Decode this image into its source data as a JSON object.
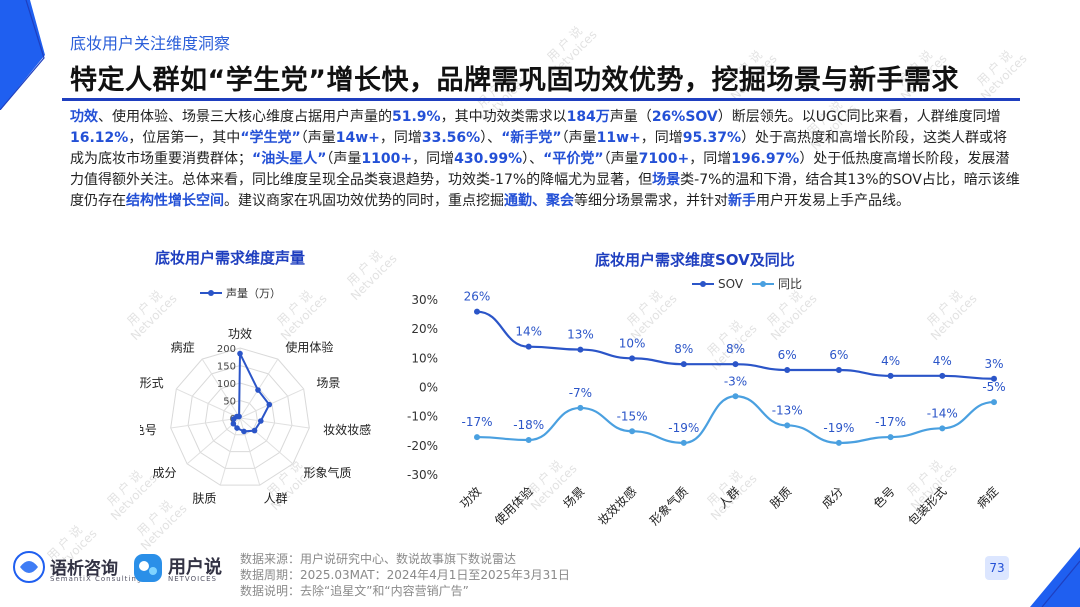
{
  "header": {
    "section_label": "底妆用户关注维度洞察",
    "headline": "特定人群如“学生党”增长快，品牌需巩固功效优势，挖掘场景与新手需求"
  },
  "summary_segments": [
    {
      "t": "功效",
      "hl": true
    },
    {
      "t": "、使用体验、场景三大核心维度占据用户声量的",
      "hl": false
    },
    {
      "t": "51.9%",
      "hl": true
    },
    {
      "t": "，其中功效类需求以",
      "hl": false
    },
    {
      "t": "184万",
      "hl": true
    },
    {
      "t": "声量（",
      "hl": false
    },
    {
      "t": "26%SOV",
      "hl": true
    },
    {
      "t": "）断层领先。以UGC同比来看，人群维度同增",
      "hl": false
    },
    {
      "t": "16.12%",
      "hl": true
    },
    {
      "t": "，位居第一，其中",
      "hl": false
    },
    {
      "t": "“学生党”",
      "hl": true
    },
    {
      "t": "（声量",
      "hl": false
    },
    {
      "t": "14w+",
      "hl": true
    },
    {
      "t": "，同增",
      "hl": false
    },
    {
      "t": "33.56%",
      "hl": true
    },
    {
      "t": "）、",
      "hl": false
    },
    {
      "t": "“新手党”",
      "hl": true
    },
    {
      "t": "（声量",
      "hl": false
    },
    {
      "t": "11w+",
      "hl": true
    },
    {
      "t": "，同增",
      "hl": false
    },
    {
      "t": "95.37%",
      "hl": true
    },
    {
      "t": "）处于高热度和高增长阶段，这类人群或将成为底妆市场重要消费群体；",
      "hl": false
    },
    {
      "t": "“油头星人”",
      "hl": true
    },
    {
      "t": "（声量",
      "hl": false
    },
    {
      "t": "1100+",
      "hl": true
    },
    {
      "t": "，同增",
      "hl": false
    },
    {
      "t": "430.99%",
      "hl": true
    },
    {
      "t": "）、",
      "hl": false
    },
    {
      "t": "“平价党”",
      "hl": true
    },
    {
      "t": "（声量",
      "hl": false
    },
    {
      "t": "7100+",
      "hl": true
    },
    {
      "t": "，同增",
      "hl": false
    },
    {
      "t": "196.97%",
      "hl": true
    },
    {
      "t": "）处于低热度高增长阶段，发展潜力值得额外关注。总体来看，同比维度呈现全品类衰退趋势，功效类-17%的降幅尤为显著，但",
      "hl": false
    },
    {
      "t": "场景",
      "hl": true
    },
    {
      "t": "类-7%的温和下滑，结合其13%的SOV占比，暗示该维度仍存在",
      "hl": false
    },
    {
      "t": "结构性增长空间",
      "hl": true
    },
    {
      "t": "。建议商家在巩固功效优势的同时，重点挖掘",
      "hl": false
    },
    {
      "t": "通勤、聚会",
      "hl": true
    },
    {
      "t": "等细分场景需求，并针对",
      "hl": false
    },
    {
      "t": "新手",
      "hl": true
    },
    {
      "t": "用户开发易上手产品线。",
      "hl": false
    }
  ],
  "colors": {
    "brand_blue": "#1f3fbf",
    "highlight_blue": "#2350d6",
    "sov_line": "#2b55c8",
    "yoy_line": "#4aa0e0"
  },
  "chart_data": [
    {
      "type": "radar",
      "title": "底妆用户需求维度声量",
      "legend": {
        "label": "声量（万）",
        "placement": "top"
      },
      "categories": [
        "功效",
        "使用体验",
        "场景",
        "妆效妆感",
        "形象气质",
        "人群",
        "肤质",
        "成分",
        "色号",
        "包装形式",
        "病症"
      ],
      "values": [
        184,
        95,
        92,
        60,
        55,
        40,
        30,
        25,
        18,
        10,
        5
      ],
      "r_ticks": [
        "0",
        "50",
        "100",
        "150",
        "200"
      ],
      "r_max": 200,
      "grid": true
    },
    {
      "type": "line",
      "title": "底妆用户需求维度SOV及同比",
      "legend": {
        "placement": "top"
      },
      "categories": [
        "功效",
        "使用体验",
        "场景",
        "妆效妆感",
        "形象气质",
        "人群",
        "肤质",
        "成分",
        "色号",
        "包装形式",
        "病症"
      ],
      "series": [
        {
          "name": "SOV",
          "values": [
            26,
            14,
            13,
            10,
            8,
            8,
            6,
            6,
            4,
            4,
            3
          ],
          "labels": [
            "26%",
            "14%",
            "13%",
            "10%",
            "8%",
            "8%",
            "6%",
            "6%",
            "4%",
            "4%",
            "3%"
          ]
        },
        {
          "name": "同比",
          "values": [
            -17,
            -18,
            -7,
            -15,
            -19,
            -3,
            -13,
            -19,
            -17,
            -14,
            -5
          ],
          "labels": [
            "-17%",
            "-18%",
            "-7%",
            "-15%",
            "-19%",
            "-3%",
            "-13%",
            "-19%",
            "-17%",
            "-14%",
            "-5%"
          ]
        }
      ],
      "y_ticks": [
        "30%",
        "20%",
        "10%",
        "0%",
        "-10%",
        "-20%",
        "-30%"
      ],
      "ylim": [
        -30,
        30
      ]
    }
  ],
  "footer": {
    "lines": [
      "数据来源：用户说研究中心、数说故事旗下数说雷达",
      "数据周期：2025.03MAT：2024年4月1日至2025年3月31日",
      "数据说明：去除“追星文”和“内容营销广告”"
    ],
    "page_number": "73"
  },
  "logos": {
    "semantix_name": "语析咨询",
    "semantix_sub": "SemantiX Consulting",
    "yhs_name": "用户说",
    "yhs_sub": "NETVOICES"
  },
  "watermark": {
    "line1": "用 户 说",
    "line2": "Netvoices"
  }
}
